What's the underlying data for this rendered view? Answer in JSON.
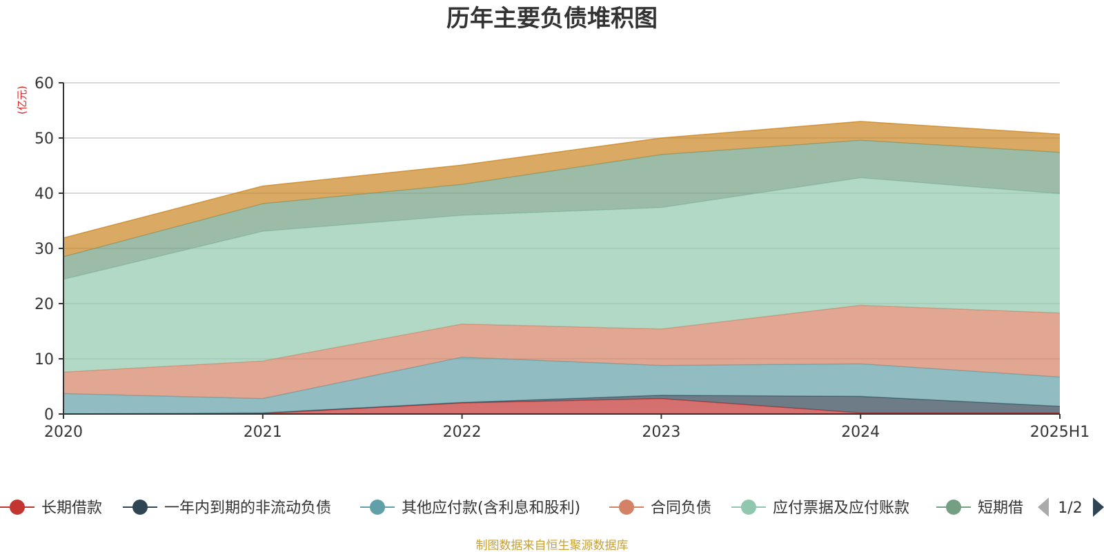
{
  "chart_data": {
    "type": "area",
    "stacked": true,
    "title": "历年主要负债堆积图",
    "y_unit_label": "(亿元)",
    "categories": [
      "2020",
      "2021",
      "2022",
      "2023",
      "2024",
      "2025H1"
    ],
    "ylim": [
      0,
      60
    ],
    "y_ticks": [
      "0",
      "10",
      "20",
      "30",
      "40",
      "50",
      "60"
    ],
    "grid": true,
    "legend_position": "bottom",
    "series": [
      {
        "name": "长期借款",
        "color": "#c23531",
        "values": [
          0.0,
          0.1,
          2.0,
          2.8,
          0.2,
          0.2
        ]
      },
      {
        "name": "一年内到期的非流动负债",
        "color": "#2f4554",
        "values": [
          0.0,
          0.1,
          0.1,
          0.6,
          3.0,
          1.2
        ]
      },
      {
        "name": "其他应付款(含利息和股利)",
        "color": "#61a0a8",
        "values": [
          3.7,
          2.6,
          8.2,
          5.4,
          5.9,
          5.3
        ]
      },
      {
        "name": "合同负债",
        "color": "#d48265",
        "values": [
          3.9,
          6.8,
          6.0,
          6.6,
          10.6,
          11.6
        ]
      },
      {
        "name": "应付票据及应付账款",
        "color": "#91c7ae",
        "values": [
          16.8,
          23.5,
          19.7,
          22.0,
          23.1,
          21.6
        ]
      },
      {
        "name": "短期借款",
        "color": "#749f83",
        "values": [
          4.1,
          5.0,
          5.6,
          9.6,
          6.8,
          7.5
        ]
      },
      {
        "name": "",
        "color": "#ca8622",
        "values": [
          3.4,
          3.2,
          3.5,
          3.0,
          3.4,
          3.3
        ]
      }
    ]
  },
  "legend": {
    "visible_items": [
      {
        "label": "长期借款",
        "color": "#c23531"
      },
      {
        "label": "一年内到期的非流动负债",
        "color": "#2f4554"
      },
      {
        "label": "其他应付款(含利息和股利)",
        "color": "#61a0a8"
      },
      {
        "label": "合同负债",
        "color": "#d48265"
      },
      {
        "label": "应付票据及应付账款",
        "color": "#91c7ae"
      },
      {
        "label": "短期借",
        "color": "#749f83"
      }
    ],
    "page_text": "1/2"
  },
  "source_text": "制图数据来自恒生聚源数据库"
}
